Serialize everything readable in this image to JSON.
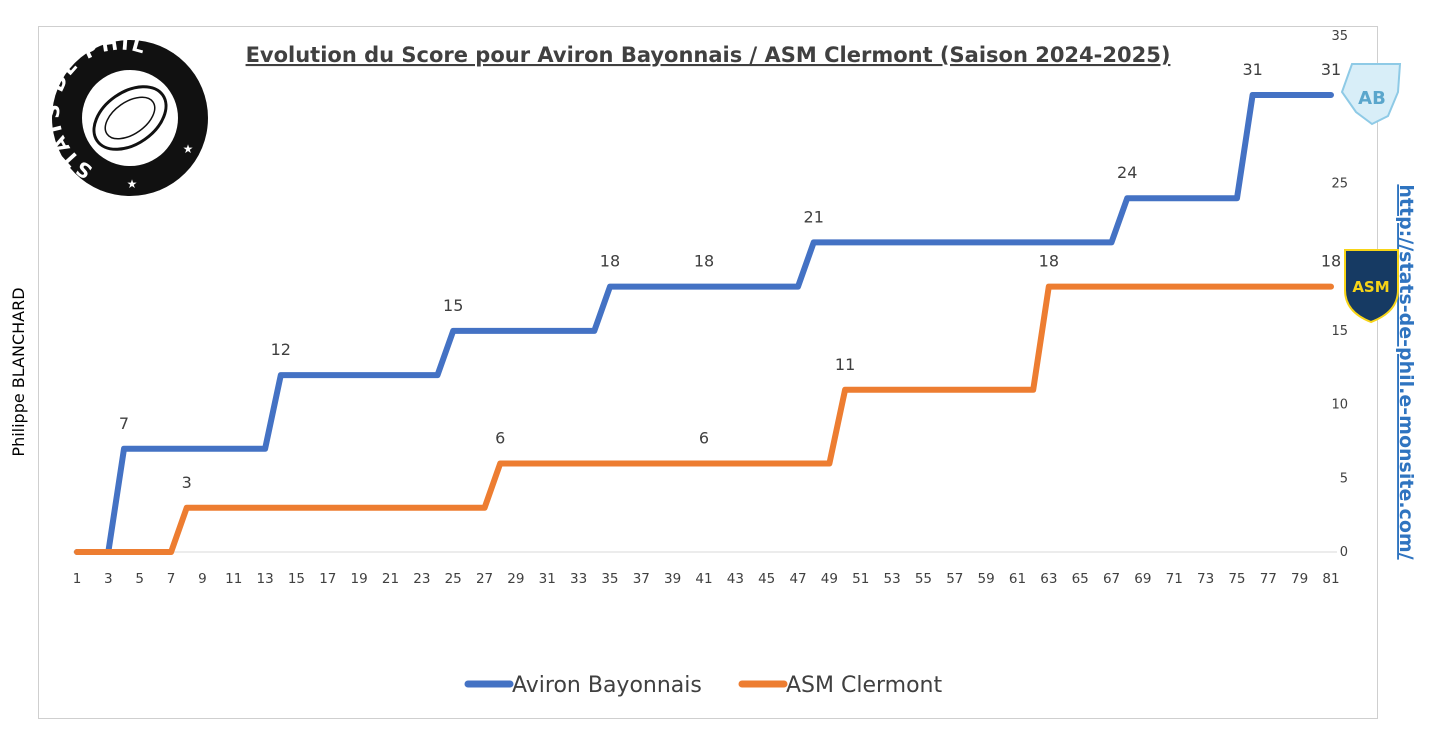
{
  "chart_data": {
    "type": "line",
    "title": "Evolution du Score pour Aviron Bayonnais / ASM Clermont (Saison 2024-2025)",
    "x_tick_labels": [
      "1",
      "3",
      "5",
      "7",
      "9",
      "11",
      "13",
      "15",
      "17",
      "19",
      "21",
      "23",
      "25",
      "27",
      "29",
      "31",
      "33",
      "35",
      "37",
      "39",
      "41",
      "43",
      "45",
      "47",
      "49",
      "51",
      "53",
      "55",
      "57",
      "59",
      "61",
      "63",
      "65",
      "67",
      "69",
      "71",
      "73",
      "75",
      "77",
      "79",
      "81"
    ],
    "xlim": [
      1,
      81
    ],
    "ylim": [
      0,
      35
    ],
    "y_ticks": [
      0,
      5,
      10,
      15,
      25,
      35
    ],
    "y_tick_labels": [
      "0",
      "5",
      "10",
      "15",
      "25",
      "35"
    ],
    "grid": false,
    "legend_position": "bottom",
    "series": [
      {
        "name": "Aviron Bayonnais",
        "color": "#4472c4",
        "steps": [
          [
            1,
            0
          ],
          [
            3,
            0
          ],
          [
            4,
            7
          ],
          [
            13,
            7
          ],
          [
            14,
            12
          ],
          [
            24,
            12
          ],
          [
            25,
            15
          ],
          [
            34,
            15
          ],
          [
            35,
            18
          ],
          [
            47,
            18
          ],
          [
            48,
            21
          ],
          [
            67,
            21
          ],
          [
            68,
            24
          ],
          [
            75,
            24
          ],
          [
            76,
            31
          ],
          [
            81,
            31
          ]
        ],
        "labels": [
          {
            "x": 4,
            "y": 7,
            "text": "7"
          },
          {
            "x": 14,
            "y": 12,
            "text": "12"
          },
          {
            "x": 25,
            "y": 15,
            "text": "15"
          },
          {
            "x": 35,
            "y": 18,
            "text": "18"
          },
          {
            "x": 41,
            "y": 18,
            "text": "18"
          },
          {
            "x": 48,
            "y": 21,
            "text": "21"
          },
          {
            "x": 68,
            "y": 24,
            "text": "24"
          },
          {
            "x": 76,
            "y": 31,
            "text": "31"
          },
          {
            "x": 81,
            "y": 31,
            "text": "31"
          }
        ]
      },
      {
        "name": "ASM Clermont",
        "color": "#ed7d31",
        "steps": [
          [
            1,
            0
          ],
          [
            7,
            0
          ],
          [
            8,
            3
          ],
          [
            27,
            3
          ],
          [
            28,
            6
          ],
          [
            49,
            6
          ],
          [
            50,
            11
          ],
          [
            62,
            11
          ],
          [
            63,
            18
          ],
          [
            81,
            18
          ]
        ],
        "labels": [
          {
            "x": 8,
            "y": 3,
            "text": "3"
          },
          {
            "x": 28,
            "y": 6,
            "text": "6"
          },
          {
            "x": 41,
            "y": 6,
            "text": "6"
          },
          {
            "x": 50,
            "y": 11,
            "text": "11"
          },
          {
            "x": 63,
            "y": 18,
            "text": "18"
          },
          {
            "x": 81,
            "y": 18,
            "text": "18"
          }
        ]
      }
    ]
  },
  "author": "Philippe BLANCHARD",
  "website": "http://stats-de-phil.e-monsite.com/",
  "logo_text": "STATS DE PHIL",
  "team_badges": [
    {
      "name": "aviron-bayonnais-badge",
      "text": "AB",
      "color": "#8ecae6"
    },
    {
      "name": "asm-clermont-badge",
      "text": "ASM",
      "color": "#f7d417"
    }
  ]
}
